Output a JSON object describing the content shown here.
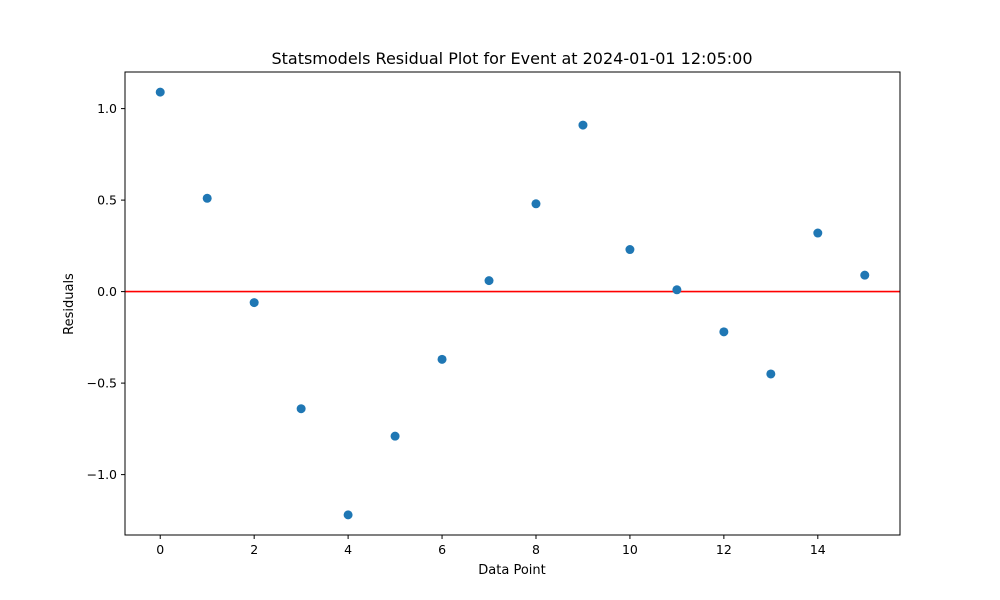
{
  "chart_data": {
    "type": "scatter",
    "title": "Statsmodels Residual Plot for Event at 2024-01-01 12:05:00",
    "xlabel": "Data Point",
    "ylabel": "Residuals",
    "xlim": [
      -0.75,
      15.75
    ],
    "ylim": [
      -1.33,
      1.2
    ],
    "xticks": [
      0,
      2,
      4,
      6,
      8,
      10,
      12,
      14
    ],
    "xtick_labels": [
      "0",
      "2",
      "4",
      "6",
      "8",
      "10",
      "12",
      "14"
    ],
    "yticks": [
      -1.0,
      -0.5,
      0.0,
      0.5,
      1.0
    ],
    "ytick_labels": [
      "−1.0",
      "−0.5",
      "0.0",
      "0.5",
      "1.0"
    ],
    "grid": false,
    "legend": "none",
    "series": [
      {
        "color": "#1f77b4",
        "marker": "circle",
        "x": [
          0,
          1,
          2,
          3,
          4,
          5,
          6,
          7,
          8,
          9,
          10,
          11,
          12,
          13,
          14,
          15
        ],
        "y": [
          1.09,
          0.51,
          -0.06,
          -0.64,
          -1.22,
          -0.79,
          -0.37,
          0.06,
          0.48,
          0.91,
          0.23,
          0.01,
          -0.22,
          -0.45,
          0.32,
          0.09
        ]
      }
    ],
    "reference_lines": [
      {
        "orientation": "horizontal",
        "y": 0,
        "color": "#ff0000"
      }
    ]
  }
}
